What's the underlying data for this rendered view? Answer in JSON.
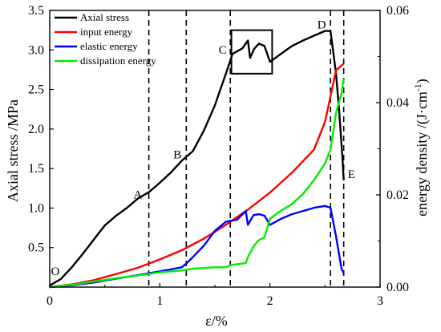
{
  "chart_data": {
    "type": "line",
    "xlabel": "ε/%",
    "ylabel": "Axial stress /MPa",
    "y2label": "energy density  /(J·cm",
    "y2label_sup": "-1",
    "y2label_end": ")",
    "xlim": [
      0,
      3
    ],
    "ylim": [
      0,
      3.5
    ],
    "y2lim": [
      0,
      0.06
    ],
    "xticks": [
      "0",
      "1",
      "2",
      "3"
    ],
    "yticks": [
      "0.5",
      "1.0",
      "1.5",
      "2.0",
      "2.5",
      "3.0",
      "3.5"
    ],
    "y2ticks": [
      "0.00",
      "0.02",
      "0.04",
      "0.06"
    ],
    "legend_position": "top-left",
    "series": [
      {
        "name": "Axial stress",
        "axis": "left",
        "color": "#000000",
        "points": [
          [
            0,
            0.02
          ],
          [
            0.1,
            0.1
          ],
          [
            0.2,
            0.25
          ],
          [
            0.3,
            0.42
          ],
          [
            0.4,
            0.6
          ],
          [
            0.5,
            0.78
          ],
          [
            0.6,
            0.9
          ],
          [
            0.7,
            1.0
          ],
          [
            0.8,
            1.12
          ],
          [
            0.9,
            1.2
          ],
          [
            1.0,
            1.32
          ],
          [
            1.1,
            1.45
          ],
          [
            1.2,
            1.6
          ],
          [
            1.3,
            1.72
          ],
          [
            1.4,
            1.98
          ],
          [
            1.5,
            2.3
          ],
          [
            1.6,
            2.7
          ],
          [
            1.66,
            2.95
          ],
          [
            1.75,
            3.02
          ],
          [
            1.8,
            3.12
          ],
          [
            1.82,
            2.9
          ],
          [
            1.86,
            3.02
          ],
          [
            1.9,
            3.08
          ],
          [
            1.95,
            3.05
          ],
          [
            2.0,
            2.85
          ],
          [
            2.1,
            2.95
          ],
          [
            2.2,
            3.05
          ],
          [
            2.3,
            3.12
          ],
          [
            2.4,
            3.18
          ],
          [
            2.5,
            3.24
          ],
          [
            2.55,
            3.24
          ],
          [
            2.6,
            2.7
          ],
          [
            2.63,
            2.2
          ],
          [
            2.66,
            1.6
          ],
          [
            2.67,
            1.35
          ]
        ]
      },
      {
        "name": "input energy",
        "axis": "right",
        "color": "#ff0000",
        "points": [
          [
            0,
            0
          ],
          [
            0.2,
            0.0006
          ],
          [
            0.4,
            0.0015
          ],
          [
            0.6,
            0.0028
          ],
          [
            0.8,
            0.0042
          ],
          [
            1.0,
            0.006
          ],
          [
            1.2,
            0.008
          ],
          [
            1.4,
            0.0105
          ],
          [
            1.6,
            0.0135
          ],
          [
            1.8,
            0.0168
          ],
          [
            2.0,
            0.0205
          ],
          [
            2.2,
            0.0248
          ],
          [
            2.4,
            0.0298
          ],
          [
            2.5,
            0.0358
          ],
          [
            2.6,
            0.047
          ],
          [
            2.67,
            0.0485
          ]
        ]
      },
      {
        "name": "elastic energy",
        "axis": "right",
        "color": "#0000ff",
        "points": [
          [
            0,
            0
          ],
          [
            0.2,
            0.0004
          ],
          [
            0.4,
            0.001
          ],
          [
            0.6,
            0.0018
          ],
          [
            0.8,
            0.0026
          ],
          [
            1.0,
            0.0034
          ],
          [
            1.2,
            0.0043
          ],
          [
            1.24,
            0.0051
          ],
          [
            1.3,
            0.0065
          ],
          [
            1.4,
            0.009
          ],
          [
            1.5,
            0.0122
          ],
          [
            1.6,
            0.0142
          ],
          [
            1.7,
            0.0146
          ],
          [
            1.78,
            0.0165
          ],
          [
            1.8,
            0.0135
          ],
          [
            1.85,
            0.0156
          ],
          [
            1.9,
            0.0158
          ],
          [
            1.95,
            0.0155
          ],
          [
            2.0,
            0.0135
          ],
          [
            2.1,
            0.0148
          ],
          [
            2.2,
            0.0158
          ],
          [
            2.3,
            0.0165
          ],
          [
            2.4,
            0.0172
          ],
          [
            2.5,
            0.0176
          ],
          [
            2.55,
            0.0172
          ],
          [
            2.6,
            0.011
          ],
          [
            2.65,
            0.004
          ],
          [
            2.67,
            0.003
          ]
        ]
      },
      {
        "name": "dissipation energy",
        "axis": "right",
        "color": "#00ee00",
        "points": [
          [
            0,
            0
          ],
          [
            0.2,
            0.0005
          ],
          [
            0.4,
            0.0012
          ],
          [
            0.6,
            0.0019
          ],
          [
            0.8,
            0.0025
          ],
          [
            1.0,
            0.0032
          ],
          [
            1.2,
            0.0036
          ],
          [
            1.3,
            0.004
          ],
          [
            1.5,
            0.0043
          ],
          [
            1.6,
            0.0043
          ],
          [
            1.65,
            0.0048
          ],
          [
            1.78,
            0.0052
          ],
          [
            1.8,
            0.0065
          ],
          [
            1.85,
            0.0088
          ],
          [
            1.9,
            0.0102
          ],
          [
            1.95,
            0.0108
          ],
          [
            2.0,
            0.0148
          ],
          [
            2.1,
            0.0166
          ],
          [
            2.2,
            0.018
          ],
          [
            2.3,
            0.0202
          ],
          [
            2.4,
            0.0232
          ],
          [
            2.5,
            0.0268
          ],
          [
            2.55,
            0.0298
          ],
          [
            2.6,
            0.0378
          ],
          [
            2.65,
            0.042
          ],
          [
            2.67,
            0.0452
          ]
        ]
      }
    ],
    "vlines_x": [
      0.9,
      1.24,
      1.64,
      2.55,
      2.67
    ],
    "point_labels": [
      {
        "text": "O",
        "x": 0.05,
        "y": 0.15
      },
      {
        "text": "A",
        "x": 0.8,
        "y": 1.12
      },
      {
        "text": "B",
        "x": 1.16,
        "y": 1.63
      },
      {
        "text": "C",
        "x": 1.57,
        "y": 2.95
      },
      {
        "text": "D",
        "x": 2.47,
        "y": 3.27
      },
      {
        "text": "E",
        "x": 2.74,
        "y": 1.38
      }
    ],
    "inset_box": {
      "x0": 1.65,
      "x1": 2.02,
      "y0": 2.7,
      "y1": 3.25
    }
  }
}
